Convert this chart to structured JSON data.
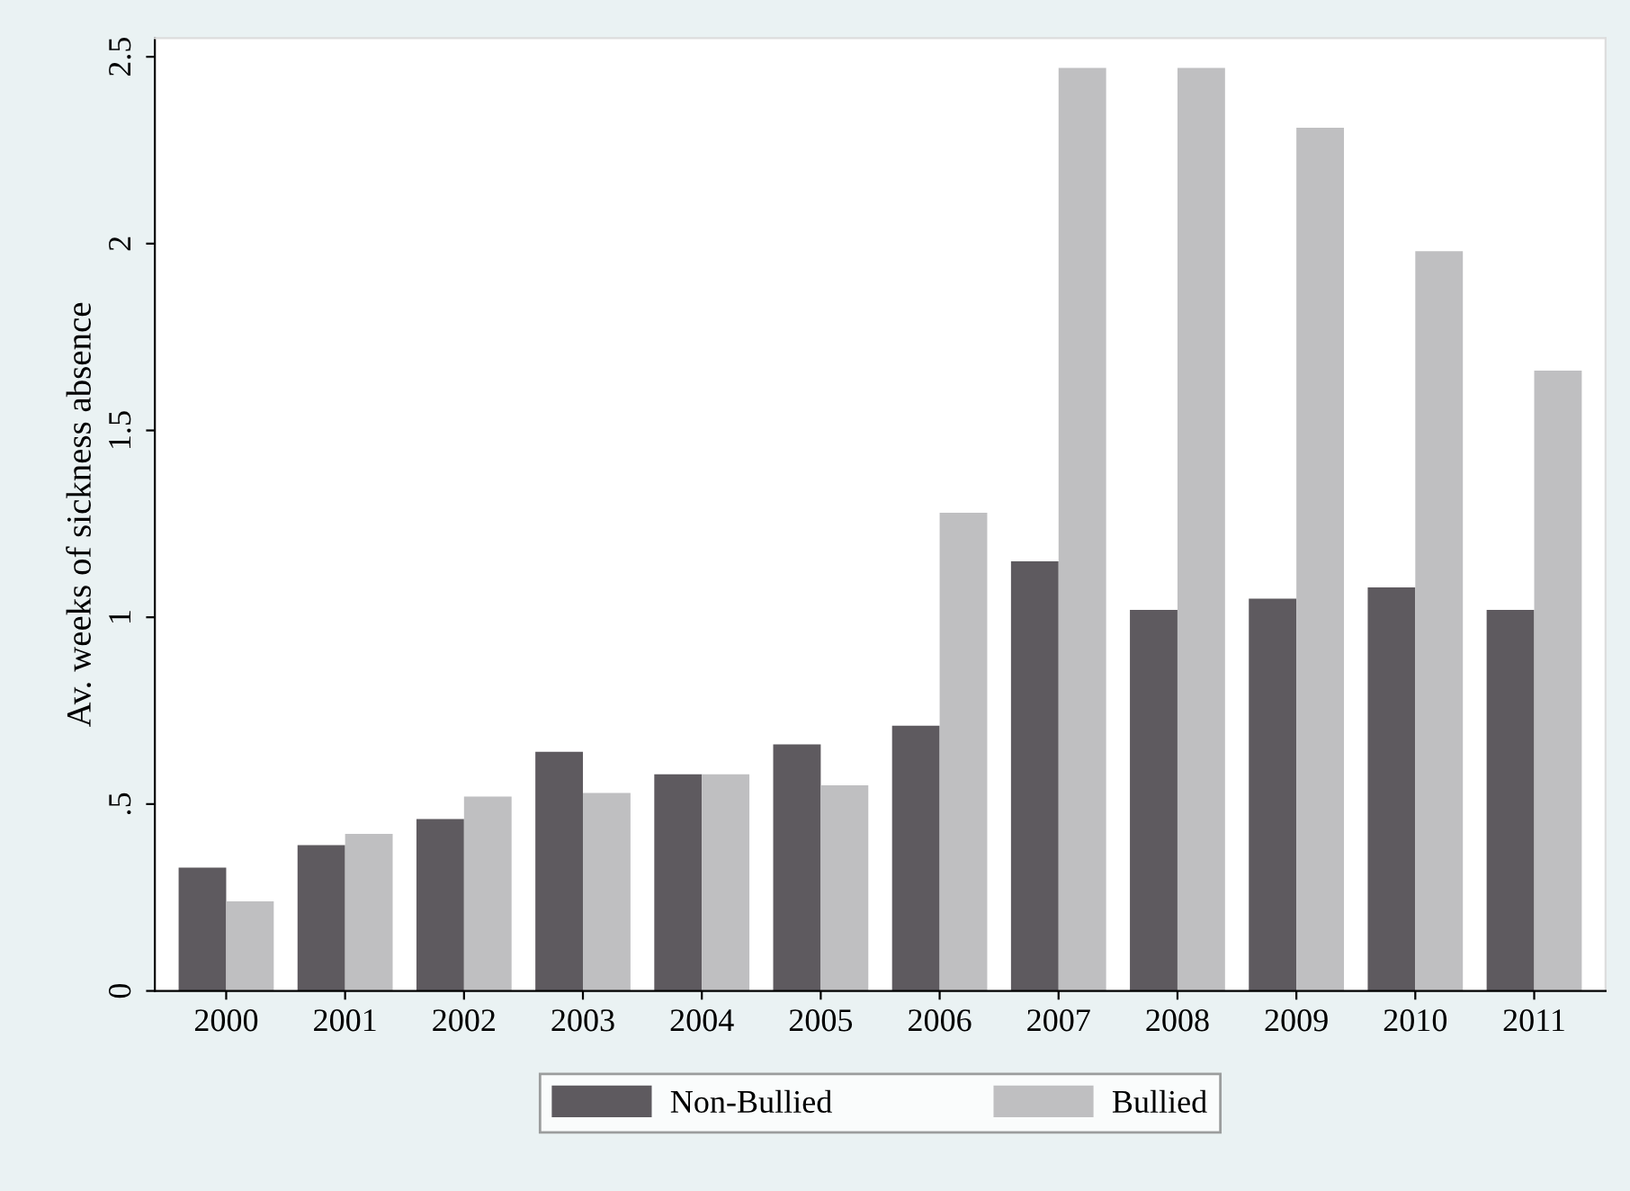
{
  "chart_data": {
    "type": "bar",
    "ylabel": "Av. weeks of sickness absence",
    "categories": [
      "2000",
      "2001",
      "2002",
      "2003",
      "2004",
      "2005",
      "2006",
      "2007",
      "2008",
      "2009",
      "2010",
      "2011"
    ],
    "series": [
      {
        "name": "Non-Bullied",
        "color": "#5e5a5f",
        "values": [
          0.33,
          0.39,
          0.46,
          0.64,
          0.58,
          0.66,
          0.71,
          1.15,
          1.02,
          1.05,
          1.08,
          1.02
        ]
      },
      {
        "name": "Bullied",
        "color": "#bfbfc1",
        "values": [
          0.24,
          0.42,
          0.52,
          0.53,
          0.58,
          0.55,
          1.28,
          2.47,
          2.47,
          2.31,
          1.98,
          1.66
        ]
      }
    ],
    "ylim": [
      0,
      2.55
    ],
    "yticks": [
      0,
      {
        "value": 0.5,
        "label": ".5"
      },
      1,
      1.5,
      2,
      2.5
    ],
    "grid": false,
    "legend": "bottom"
  }
}
